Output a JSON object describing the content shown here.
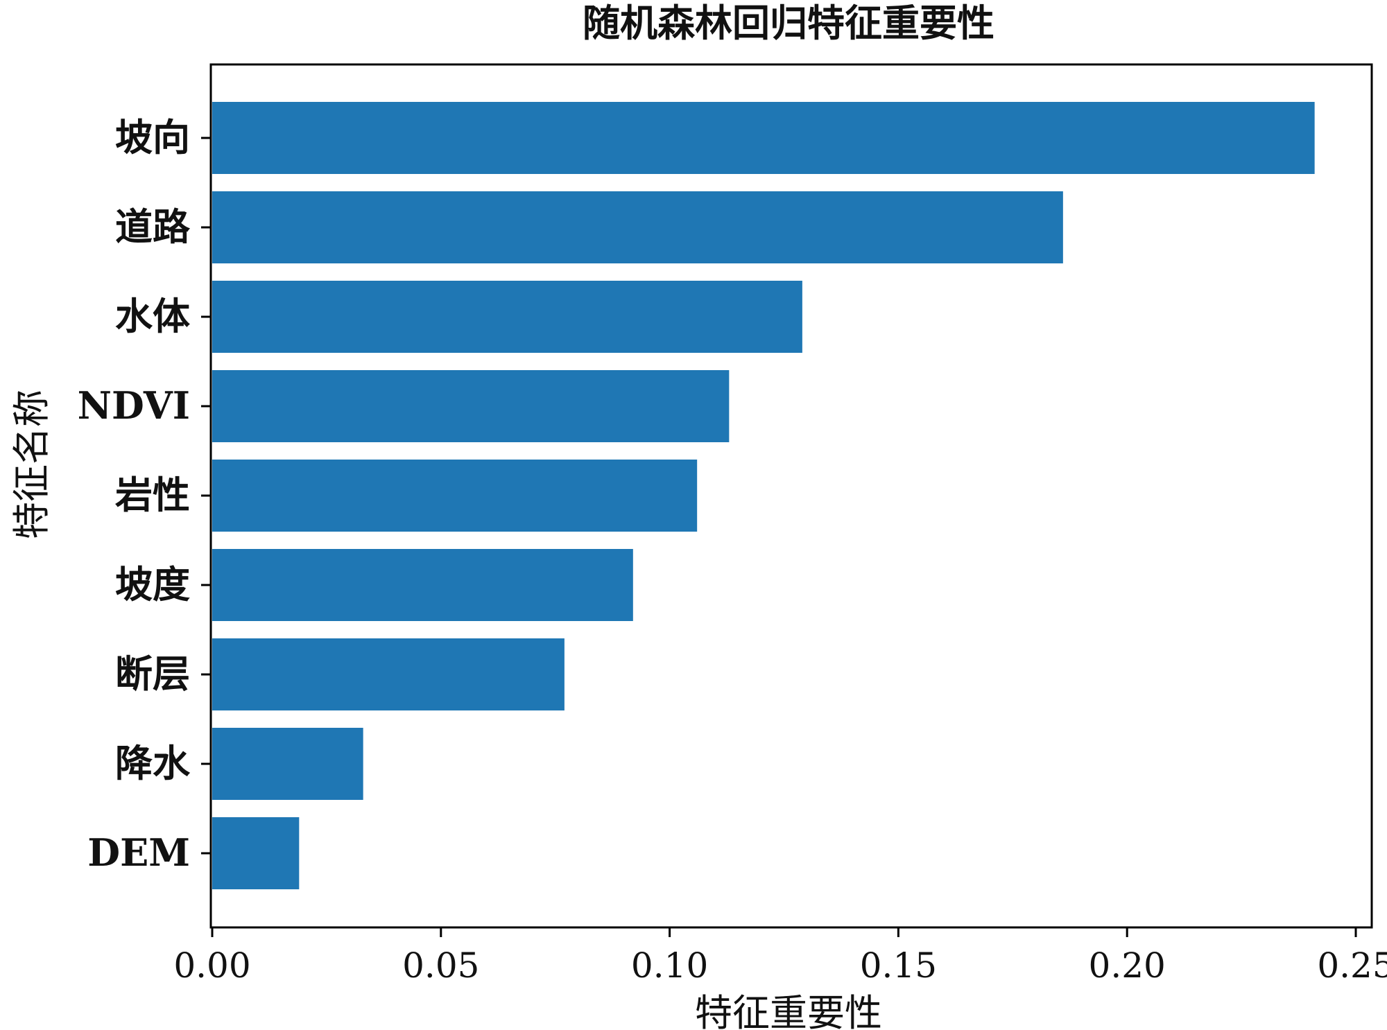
{
  "chart_data": {
    "type": "bar",
    "orientation": "horizontal",
    "title": "随机森林回归特征重要性",
    "xlabel": "特征重要性",
    "ylabel": "特征名称",
    "categories": [
      "坡向",
      "道路",
      "水体",
      "NDVI",
      "岩性",
      "坡度",
      "断层",
      "降水",
      "DEM"
    ],
    "values": [
      0.241,
      0.186,
      0.129,
      0.113,
      0.106,
      0.092,
      0.077,
      0.033,
      0.019
    ],
    "xlim": [
      0,
      0.254
    ],
    "xticks": [
      "0.00",
      "0.05",
      "0.10",
      "0.15",
      "0.20",
      "0.25"
    ],
    "bar_color": "#1f77b4",
    "grid": false,
    "legend": "none"
  }
}
